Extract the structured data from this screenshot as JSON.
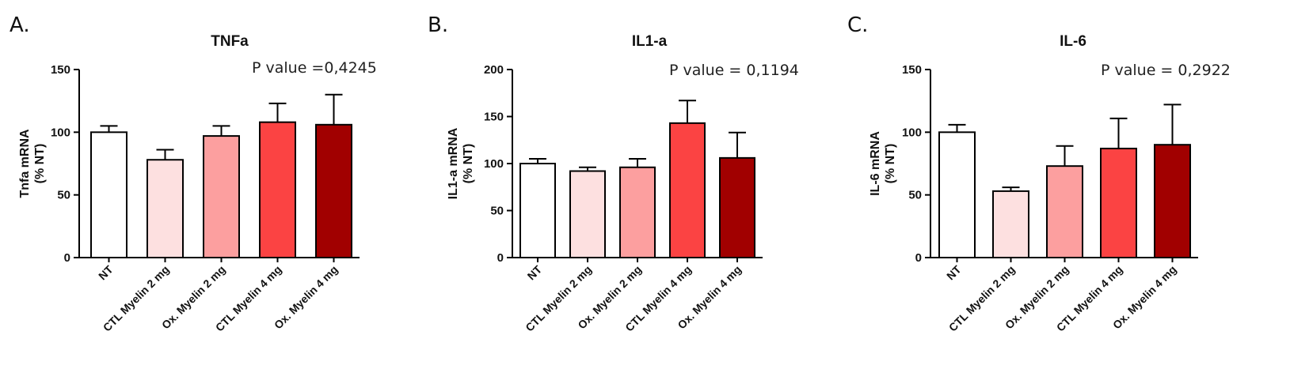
{
  "chart_data": [
    {
      "type": "bar",
      "panel": "A.",
      "title": "TNFa",
      "annotation": "P value =0,4245",
      "ylabel": [
        "Tnfa mRNA",
        "(% NT)"
      ],
      "ylim": [
        0,
        150
      ],
      "yticks": [
        0,
        50,
        100,
        150
      ],
      "categories": [
        "NT",
        "CTL Myelin 2 mg",
        "Ox. Myelin 2 mg",
        "CTL Myelin 4 mg",
        "Ox. Myelin 4 mg"
      ],
      "values": [
        100,
        78,
        97,
        108,
        106
      ],
      "errors": [
        5,
        8,
        8,
        15,
        24
      ]
    },
    {
      "type": "bar",
      "panel": "B.",
      "title": "IL1-a",
      "annotation": "P value = 0,1194",
      "ylabel": [
        "IL1-a mRNA",
        "(% NT)"
      ],
      "ylim": [
        0,
        200
      ],
      "yticks": [
        0,
        50,
        100,
        150,
        200
      ],
      "categories": [
        "NT",
        "CTL Myelin 2 mg",
        "Ox. Myelin 2 mg",
        "CTL Myelin 4 mg",
        "Ox. Myelin 4 mg"
      ],
      "values": [
        100,
        92,
        96,
        143,
        106
      ],
      "errors": [
        5,
        4,
        9,
        24,
        27
      ]
    },
    {
      "type": "bar",
      "panel": "C.",
      "title": "IL-6",
      "annotation": "P value = 0,2922",
      "ylabel": [
        "IL-6 mRNA",
        "(% NT)"
      ],
      "ylim": [
        0,
        150
      ],
      "yticks": [
        0,
        50,
        100,
        150
      ],
      "categories": [
        "NT",
        "CTL Myelin 2 mg",
        "Ox. Myelin 2 mg",
        "CTL Myelin 4 mg",
        "Ox. Myelin 4 mg"
      ],
      "values": [
        100,
        53,
        73,
        87,
        90
      ],
      "errors": [
        6,
        3,
        16,
        24,
        32
      ]
    }
  ],
  "bar_colors": [
    "#ffffff",
    "#fde0e0",
    "#fc9f9f",
    "#fb4343",
    "#a10000"
  ],
  "edge_color": "#000000"
}
